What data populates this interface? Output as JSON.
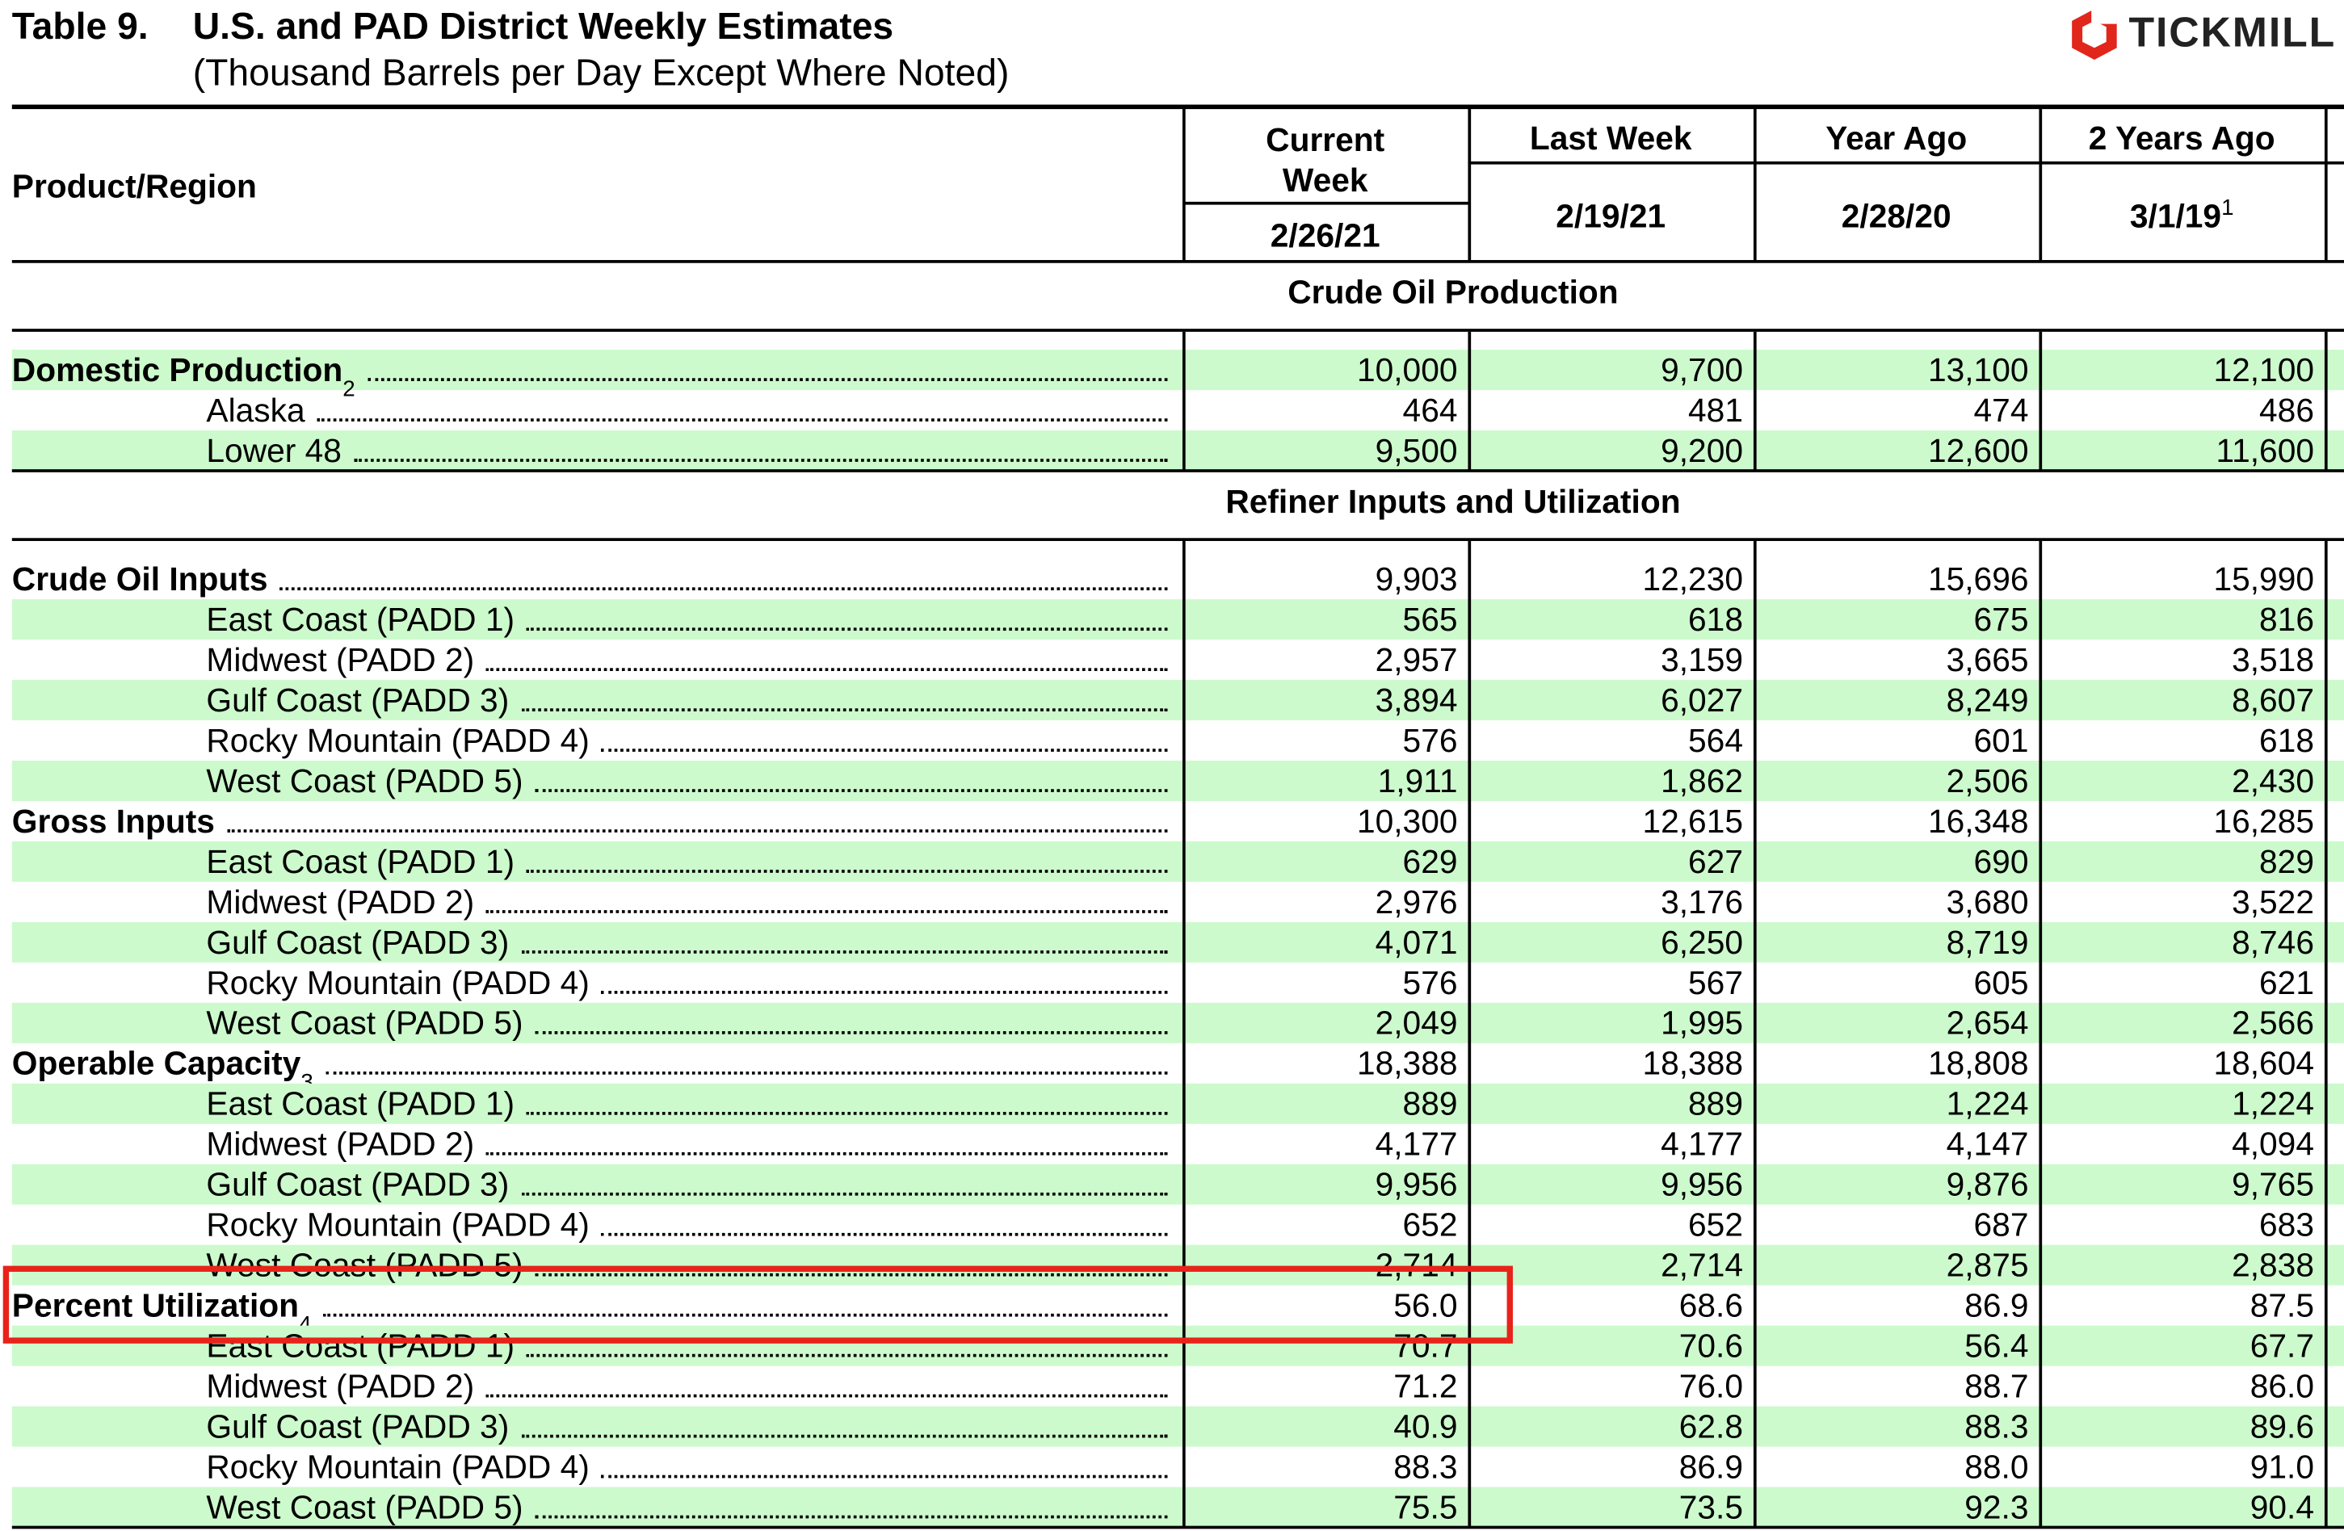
{
  "header": {
    "title_prefix": "Table 9.",
    "title": "U.S. and PAD District Weekly Estimates",
    "subtitle": "(Thousand Barrels per Day Except Where Noted)",
    "logo": "TICKMILL"
  },
  "table": {
    "row_header": "Product/Region",
    "columns": [
      {
        "label": "Current Week",
        "date": "2/26/21"
      },
      {
        "label": "Last Week",
        "date": "2/19/21"
      },
      {
        "label": "Year Ago",
        "date": "2/28/20"
      },
      {
        "label": "2 Years Ago",
        "date": "3/1/19",
        "note": "1"
      }
    ],
    "sections": [
      {
        "title": "Crude Oil Production",
        "rows": [
          {
            "label": "Domestic Production",
            "note": "2",
            "bold": true,
            "values": [
              "10,000",
              "9,700",
              "13,100",
              "12,100"
            ]
          },
          {
            "label": "Alaska",
            "values": [
              "464",
              "481",
              "474",
              "486"
            ]
          },
          {
            "label": "Lower 48",
            "values": [
              "9,500",
              "9,200",
              "12,600",
              "11,600"
            ]
          }
        ]
      },
      {
        "title": "Refiner Inputs and Utilization",
        "rows": [
          {
            "label": "Crude Oil Inputs",
            "bold": true,
            "values": [
              "9,903",
              "12,230",
              "15,696",
              "15,990"
            ]
          },
          {
            "label": "East Coast (PADD 1)",
            "values": [
              "565",
              "618",
              "675",
              "816"
            ]
          },
          {
            "label": "Midwest (PADD 2)",
            "values": [
              "2,957",
              "3,159",
              "3,665",
              "3,518"
            ]
          },
          {
            "label": "Gulf Coast (PADD 3)",
            "values": [
              "3,894",
              "6,027",
              "8,249",
              "8,607"
            ]
          },
          {
            "label": "Rocky Mountain (PADD 4)",
            "values": [
              "576",
              "564",
              "601",
              "618"
            ]
          },
          {
            "label": "West Coast (PADD 5)",
            "values": [
              "1,911",
              "1,862",
              "2,506",
              "2,430"
            ]
          },
          {
            "label": "Gross Inputs",
            "bold": true,
            "values": [
              "10,300",
              "12,615",
              "16,348",
              "16,285"
            ]
          },
          {
            "label": "East Coast (PADD 1)",
            "values": [
              "629",
              "627",
              "690",
              "829"
            ]
          },
          {
            "label": "Midwest (PADD 2)",
            "values": [
              "2,976",
              "3,176",
              "3,680",
              "3,522"
            ]
          },
          {
            "label": "Gulf Coast (PADD 3)",
            "values": [
              "4,071",
              "6,250",
              "8,719",
              "8,746"
            ]
          },
          {
            "label": "Rocky Mountain (PADD 4)",
            "values": [
              "576",
              "567",
              "605",
              "621"
            ]
          },
          {
            "label": "West Coast (PADD 5)",
            "values": [
              "2,049",
              "1,995",
              "2,654",
              "2,566"
            ]
          },
          {
            "label": "Operable Capacity",
            "note": "3",
            "bold": true,
            "values": [
              "18,388",
              "18,388",
              "18,808",
              "18,604"
            ]
          },
          {
            "label": "East Coast (PADD 1)",
            "values": [
              "889",
              "889",
              "1,224",
              "1,224"
            ]
          },
          {
            "label": "Midwest (PADD 2)",
            "values": [
              "4,177",
              "4,177",
              "4,147",
              "4,094"
            ]
          },
          {
            "label": "Gulf Coast (PADD 3)",
            "values": [
              "9,956",
              "9,956",
              "9,876",
              "9,765"
            ]
          },
          {
            "label": "Rocky Mountain (PADD 4)",
            "values": [
              "652",
              "652",
              "687",
              "683"
            ]
          },
          {
            "label": "West Coast (PADD 5)",
            "values": [
              "2,714",
              "2,714",
              "2,875",
              "2,838"
            ]
          },
          {
            "label": "Percent Utilization",
            "note": "4",
            "bold": true,
            "values": [
              "56.0",
              "68.6",
              "86.9",
              "87.5"
            ]
          },
          {
            "label": "East Coast (PADD 1)",
            "values": [
              "70.7",
              "70.6",
              "56.4",
              "67.7"
            ]
          },
          {
            "label": "Midwest (PADD 2)",
            "values": [
              "71.2",
              "76.0",
              "88.7",
              "86.0"
            ]
          },
          {
            "label": "Gulf Coast (PADD 3)",
            "values": [
              "40.9",
              "62.8",
              "88.3",
              "89.6"
            ]
          },
          {
            "label": "Rocky Mountain (PADD 4)",
            "values": [
              "88.3",
              "86.9",
              "88.0",
              "91.0"
            ]
          },
          {
            "label": "West Coast (PADD 5)",
            "values": [
              "75.5",
              "73.5",
              "92.3",
              "90.4"
            ]
          }
        ]
      }
    ]
  }
}
